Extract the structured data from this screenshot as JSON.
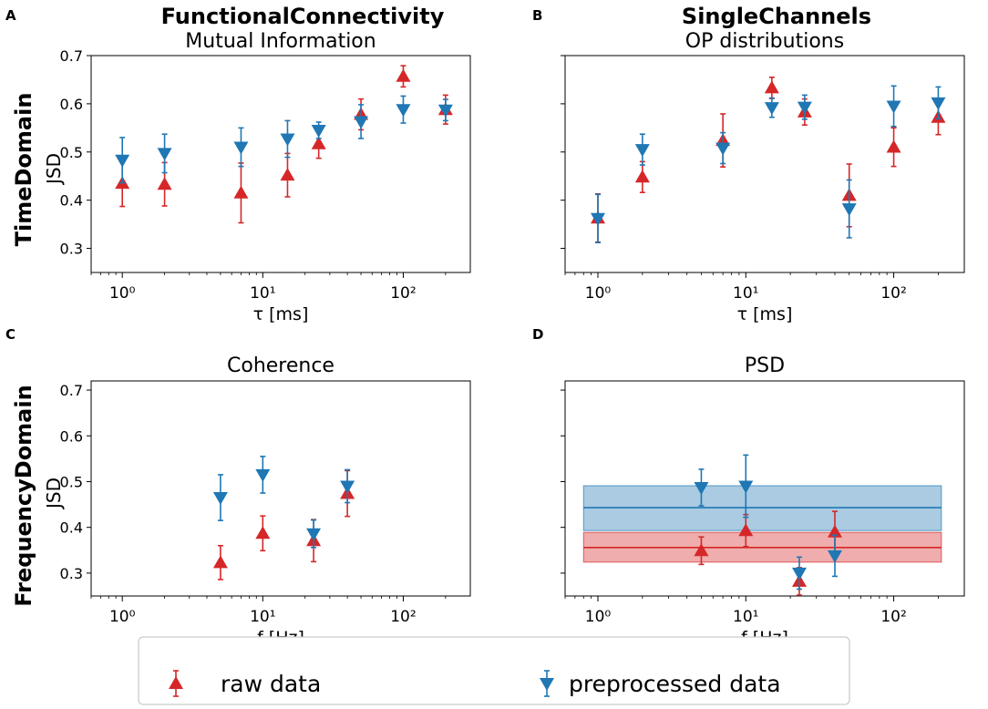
{
  "figure": {
    "row_labels": {
      "top": "TimeDomain",
      "bottom": "FrequencyDomain"
    },
    "column_headers": {
      "left": "FunctionalConnectivity",
      "right": "SingleChannels"
    },
    "legend": {
      "raw_label": "raw data",
      "pre_label": "preprocessed data"
    },
    "colors": {
      "raw": "#d62728",
      "pre": "#1f77b4"
    }
  },
  "chart_data": [
    {
      "type": "scatter",
      "panel_letter": "A",
      "title": "Mutual Information",
      "xlabel": "τ [ms]",
      "ylabel": "JSD",
      "xscale": "log",
      "xlim": [
        0.6,
        300
      ],
      "ylim": [
        0.25,
        0.7
      ],
      "yticks": [
        0.3,
        0.4,
        0.5,
        0.6,
        0.7
      ],
      "ytick_labels": [
        "0.3",
        "0.4",
        "0.5",
        "0.6",
        "0.7"
      ],
      "show_yticklabels": true,
      "xticks": [
        1,
        10,
        100
      ],
      "xtick_labels": [
        "10⁰",
        "10¹",
        "10²"
      ],
      "series": [
        {
          "name": "raw data",
          "marker": "triangle-up",
          "points": [
            {
              "x": 1,
              "y": 0.435,
              "err": 0.048
            },
            {
              "x": 2,
              "y": 0.433,
              "err": 0.045
            },
            {
              "x": 7,
              "y": 0.415,
              "err": 0.062
            },
            {
              "x": 15,
              "y": 0.452,
              "err": 0.045
            },
            {
              "x": 25,
              "y": 0.517,
              "err": 0.03
            },
            {
              "x": 50,
              "y": 0.578,
              "err": 0.032
            },
            {
              "x": 100,
              "y": 0.657,
              "err": 0.022
            },
            {
              "x": 200,
              "y": 0.588,
              "err": 0.03
            }
          ]
        },
        {
          "name": "preprocessed data",
          "marker": "triangle-down",
          "points": [
            {
              "x": 1,
              "y": 0.483,
              "err": 0.047
            },
            {
              "x": 2,
              "y": 0.497,
              "err": 0.04
            },
            {
              "x": 7,
              "y": 0.51,
              "err": 0.04
            },
            {
              "x": 15,
              "y": 0.527,
              "err": 0.038
            },
            {
              "x": 25,
              "y": 0.545,
              "err": 0.017
            },
            {
              "x": 50,
              "y": 0.563,
              "err": 0.035
            },
            {
              "x": 100,
              "y": 0.588,
              "err": 0.028
            },
            {
              "x": 200,
              "y": 0.587,
              "err": 0.022
            }
          ]
        }
      ]
    },
    {
      "type": "scatter",
      "panel_letter": "B",
      "title": "OP distributions",
      "xlabel": "τ [ms]",
      "ylabel": "",
      "xscale": "log",
      "xlim": [
        0.6,
        300
      ],
      "ylim": [
        0.25,
        0.7
      ],
      "yticks": [
        0.3,
        0.4,
        0.5,
        0.6,
        0.7
      ],
      "ytick_labels": [],
      "show_yticklabels": false,
      "xticks": [
        1,
        10,
        100
      ],
      "xtick_labels": [
        "10⁰",
        "10¹",
        "10²"
      ],
      "series": [
        {
          "name": "raw data",
          "marker": "triangle-up",
          "points": [
            {
              "x": 1,
              "y": 0.363,
              "err": 0.05
            },
            {
              "x": 2,
              "y": 0.448,
              "err": 0.032
            },
            {
              "x": 7,
              "y": 0.524,
              "err": 0.055
            },
            {
              "x": 15,
              "y": 0.633,
              "err": 0.022
            },
            {
              "x": 25,
              "y": 0.583,
              "err": 0.027
            },
            {
              "x": 50,
              "y": 0.41,
              "err": 0.065
            },
            {
              "x": 100,
              "y": 0.51,
              "err": 0.04
            },
            {
              "x": 200,
              "y": 0.572,
              "err": 0.036
            }
          ]
        },
        {
          "name": "preprocessed data",
          "marker": "triangle-down",
          "points": [
            {
              "x": 1,
              "y": 0.362,
              "err": 0.05
            },
            {
              "x": 2,
              "y": 0.505,
              "err": 0.032
            },
            {
              "x": 7,
              "y": 0.508,
              "err": 0.032
            },
            {
              "x": 15,
              "y": 0.592,
              "err": 0.02
            },
            {
              "x": 25,
              "y": 0.593,
              "err": 0.025
            },
            {
              "x": 50,
              "y": 0.382,
              "err": 0.06
            },
            {
              "x": 100,
              "y": 0.595,
              "err": 0.042
            },
            {
              "x": 200,
              "y": 0.602,
              "err": 0.033
            }
          ]
        }
      ]
    },
    {
      "type": "scatter",
      "panel_letter": "C",
      "title": "Coherence",
      "xlabel": "f [Hz]",
      "ylabel": "JSD",
      "xscale": "log",
      "xlim": [
        0.6,
        300
      ],
      "ylim": [
        0.25,
        0.72
      ],
      "yticks": [
        0.3,
        0.4,
        0.5,
        0.6,
        0.7
      ],
      "ytick_labels": [
        "0.3",
        "0.4",
        "0.5",
        "0.6",
        "0.7"
      ],
      "show_yticklabels": true,
      "xticks": [
        1,
        10,
        100
      ],
      "xtick_labels": [
        "10⁰",
        "10¹",
        "10²"
      ],
      "series": [
        {
          "name": "raw data",
          "marker": "triangle-up",
          "points": [
            {
              "x": 5,
              "y": 0.323,
              "err": 0.037
            },
            {
              "x": 10,
              "y": 0.387,
              "err": 0.038
            },
            {
              "x": 23,
              "y": 0.371,
              "err": 0.046
            },
            {
              "x": 40,
              "y": 0.474,
              "err": 0.05
            }
          ]
        },
        {
          "name": "preprocessed data",
          "marker": "triangle-down",
          "points": [
            {
              "x": 5,
              "y": 0.465,
              "err": 0.05
            },
            {
              "x": 10,
              "y": 0.515,
              "err": 0.04
            },
            {
              "x": 23,
              "y": 0.386,
              "err": 0.03
            },
            {
              "x": 40,
              "y": 0.49,
              "err": 0.036
            }
          ]
        }
      ]
    },
    {
      "type": "scatter",
      "panel_letter": "D",
      "title": "PSD",
      "xlabel": "f [Hz]",
      "ylabel": "",
      "xscale": "log",
      "xlim": [
        0.6,
        300
      ],
      "ylim": [
        0.25,
        0.72
      ],
      "yticks": [
        0.3,
        0.4,
        0.5,
        0.6,
        0.7
      ],
      "ytick_labels": [],
      "show_yticklabels": false,
      "xticks": [
        1,
        10,
        100
      ],
      "xtick_labels": [
        "10⁰",
        "10¹",
        "10²"
      ],
      "bands": [
        {
          "series": "preprocessed data",
          "x_range": [
            0.8,
            210
          ],
          "mean": 0.443,
          "low": 0.393,
          "high": 0.491
        },
        {
          "series": "raw data",
          "x_range": [
            0.8,
            210
          ],
          "mean": 0.356,
          "low": 0.324,
          "high": 0.389
        }
      ],
      "series": [
        {
          "name": "raw data",
          "marker": "triangle-up",
          "points": [
            {
              "x": 5,
              "y": 0.349,
              "err": 0.03
            },
            {
              "x": 10,
              "y": 0.393,
              "err": 0.035
            },
            {
              "x": 23,
              "y": 0.282,
              "err": 0.03
            },
            {
              "x": 40,
              "y": 0.39,
              "err": 0.045
            }
          ]
        },
        {
          "name": "preprocessed data",
          "marker": "triangle-down",
          "points": [
            {
              "x": 5,
              "y": 0.487,
              "err": 0.04
            },
            {
              "x": 10,
              "y": 0.49,
              "err": 0.068
            },
            {
              "x": 23,
              "y": 0.3,
              "err": 0.035
            },
            {
              "x": 40,
              "y": 0.338,
              "err": 0.045
            }
          ]
        }
      ]
    }
  ]
}
